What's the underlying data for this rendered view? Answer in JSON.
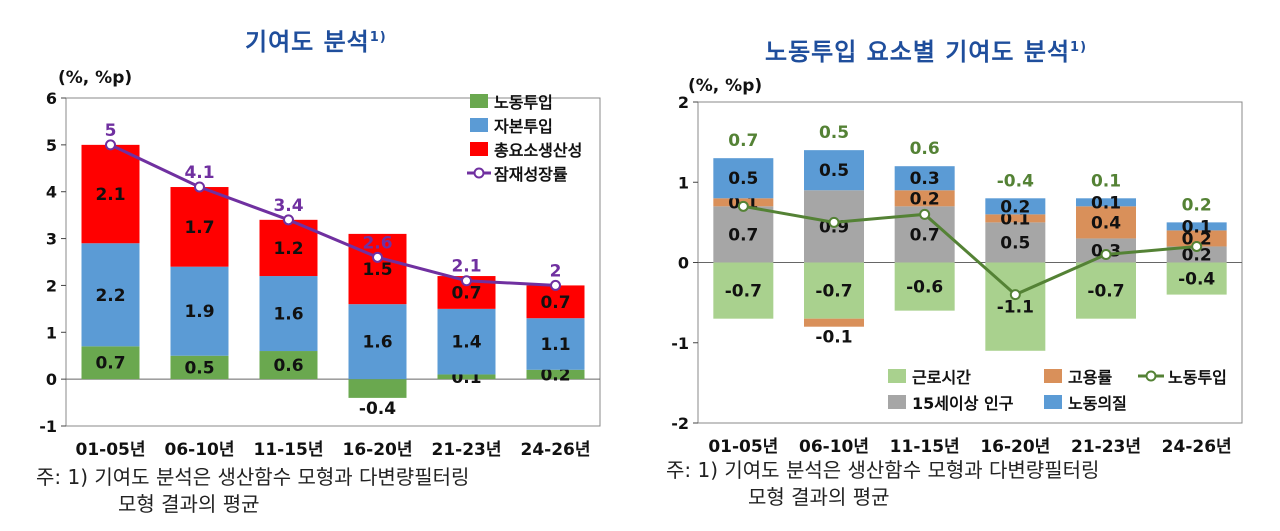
{
  "left": {
    "title": "기여도 분석",
    "title_sup": "1)",
    "unit": "(%, %p)",
    "note_line1": "주: 1) 기여도 분석은 생산함수 모형과 다변량필터링",
    "note_line2": "모형 결과의 평균"
  },
  "right": {
    "title": "노동투입 요소별 기여도 분석",
    "title_sup": "1)",
    "unit": "(%, %p)",
    "note_line1": "주: 1) 기여도 분석은 생산함수 모형과 다변량필터링",
    "note_line2": "모형 결과의 평균"
  },
  "chart_data": [
    {
      "type": "bar",
      "stacked": true,
      "title": "기여도 분석",
      "unit": "(%, %p)",
      "categories": [
        "01-05년",
        "06-10년",
        "11-15년",
        "16-20년",
        "21-23년",
        "24-26년"
      ],
      "ylim": [
        -1,
        6
      ],
      "yticks": [
        -1,
        0,
        1,
        2,
        3,
        4,
        5,
        6
      ],
      "legend_position": "top-right",
      "series": [
        {
          "name": "노동투입",
          "kind": "bar",
          "color": "#6aa84f",
          "values": [
            0.7,
            0.5,
            0.6,
            -0.4,
            0.1,
            0.2
          ]
        },
        {
          "name": "자본투입",
          "kind": "bar",
          "color": "#5b9bd5",
          "values": [
            2.2,
            1.9,
            1.6,
            1.6,
            1.4,
            1.1
          ]
        },
        {
          "name": "총요소생산성",
          "kind": "bar",
          "color": "#ff0000",
          "values": [
            2.1,
            1.7,
            1.2,
            1.5,
            0.7,
            0.7
          ]
        },
        {
          "name": "잠재성장률",
          "kind": "line",
          "color": "#7030a0",
          "values": [
            5.0,
            4.1,
            3.4,
            2.6,
            2.1,
            2.0
          ]
        }
      ]
    },
    {
      "type": "bar",
      "stacked": true,
      "title": "노동투입 요소별 기여도 분석",
      "unit": "(%, %p)",
      "categories": [
        "01-05년",
        "06-10년",
        "11-15년",
        "16-20년",
        "21-23년",
        "24-26년"
      ],
      "ylim": [
        -2,
        2
      ],
      "yticks": [
        -2,
        -1,
        0,
        1,
        2
      ],
      "legend_position": "bottom-right",
      "series": [
        {
          "name": "근로시간",
          "kind": "bar",
          "color": "#a9d18e",
          "values": [
            -0.7,
            -0.7,
            -0.6,
            -1.1,
            -0.7,
            -0.4
          ]
        },
        {
          "name": "15세이상 인구",
          "kind": "bar",
          "color": "#a6a6a6",
          "values": [
            0.7,
            0.9,
            0.7,
            0.5,
            0.3,
            0.2
          ]
        },
        {
          "name": "고용률",
          "kind": "bar",
          "color": "#d9905a",
          "values": [
            0.1,
            -0.1,
            0.2,
            0.1,
            0.4,
            0.2
          ]
        },
        {
          "name": "노동의질",
          "kind": "bar",
          "color": "#5b9bd5",
          "values": [
            0.5,
            0.5,
            0.3,
            0.2,
            0.1,
            0.1
          ]
        },
        {
          "name": "노동투입",
          "kind": "line",
          "color": "#548235",
          "values": [
            0.7,
            0.5,
            0.6,
            -0.4,
            0.1,
            0.2
          ]
        }
      ]
    }
  ]
}
